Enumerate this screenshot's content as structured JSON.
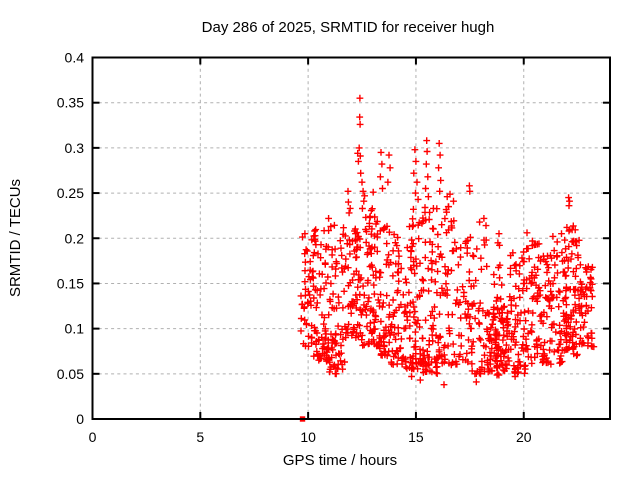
{
  "window": {
    "background": "#ffffff"
  },
  "chart_data": {
    "type": "scatter",
    "title": "Day 286 of 2025, SRMTID for receiver hugh",
    "xlabel": "GPS time / hours",
    "ylabel": "SRMTID / TECUs",
    "xlim": [
      0,
      24
    ],
    "ylim": [
      0,
      0.4
    ],
    "xticks": [
      0,
      5,
      10,
      15,
      20
    ],
    "xtick_labels": [
      "0",
      "5",
      "10",
      "15",
      "20"
    ],
    "yticks": [
      0,
      0.05,
      0.1,
      0.15,
      0.2,
      0.25,
      0.3,
      0.35,
      0.4
    ],
    "ytick_labels": [
      "0",
      "0.05",
      "0.1",
      "0.15",
      "0.2",
      "0.25",
      "0.3",
      "0.35",
      "0.4"
    ],
    "grid": "dashed gridlines at every tick, both axes",
    "legend": "none",
    "marker": "plus",
    "marker_size_px": 7,
    "colors": {
      "points": "#ff0000",
      "grid": "#b0b0b0",
      "axis": "#000000",
      "text": "#000000",
      "background": "#ffffff"
    },
    "x_data_range": [
      9.6,
      23.3
    ],
    "y_data_range": [
      0.0,
      0.355
    ],
    "n_points_estimate": 1250,
    "max_point": [
      12.4,
      0.355
    ],
    "zero_marker": {
      "x": 9.74,
      "y": 0.0,
      "marker": "filled-square"
    },
    "outlier_points": [
      [
        12.4,
        0.355
      ],
      [
        12.39,
        0.334
      ],
      [
        12.41,
        0.326
      ],
      [
        12.37,
        0.3
      ],
      [
        12.3,
        0.294
      ],
      [
        12.42,
        0.291
      ],
      [
        12.33,
        0.285
      ],
      [
        12.44,
        0.272
      ],
      [
        12.5,
        0.262
      ],
      [
        12.55,
        0.252
      ],
      [
        12.62,
        0.247
      ],
      [
        12.58,
        0.241
      ],
      [
        11.85,
        0.252
      ],
      [
        11.87,
        0.24
      ],
      [
        11.9,
        0.228
      ],
      [
        11.95,
        0.233
      ],
      [
        13.38,
        0.295
      ],
      [
        13.42,
        0.282
      ],
      [
        13.35,
        0.268
      ],
      [
        13.45,
        0.255
      ],
      [
        13.75,
        0.292
      ],
      [
        13.8,
        0.278
      ],
      [
        13.7,
        0.262
      ],
      [
        13.02,
        0.251
      ],
      [
        14.95,
        0.298
      ],
      [
        15.0,
        0.285
      ],
      [
        14.9,
        0.272
      ],
      [
        15.05,
        0.262
      ],
      [
        14.98,
        0.25
      ],
      [
        15.1,
        0.243
      ],
      [
        14.88,
        0.232
      ],
      [
        15.5,
        0.308
      ],
      [
        15.52,
        0.296
      ],
      [
        15.48,
        0.282
      ],
      [
        15.55,
        0.268
      ],
      [
        15.45,
        0.255
      ],
      [
        15.58,
        0.246
      ],
      [
        16.08,
        0.305
      ],
      [
        16.12,
        0.292
      ],
      [
        16.05,
        0.278
      ],
      [
        16.15,
        0.264
      ],
      [
        16.1,
        0.252
      ],
      [
        16.45,
        0.246
      ],
      [
        16.5,
        0.235
      ],
      [
        17.48,
        0.258
      ],
      [
        17.5,
        0.252
      ],
      [
        10.95,
        0.222
      ],
      [
        11.05,
        0.213
      ],
      [
        9.85,
        0.205
      ],
      [
        10.3,
        0.208
      ],
      [
        18.15,
        0.222
      ],
      [
        18.25,
        0.214
      ],
      [
        18.85,
        0.205
      ],
      [
        18.8,
        0.195
      ],
      [
        20.15,
        0.206
      ],
      [
        20.4,
        0.197
      ],
      [
        20.55,
        0.193
      ],
      [
        21.35,
        0.202
      ],
      [
        21.55,
        0.196
      ],
      [
        21.75,
        0.205
      ],
      [
        22.0,
        0.212
      ],
      [
        22.1,
        0.208
      ],
      [
        21.9,
        0.198
      ],
      [
        22.3,
        0.196
      ],
      [
        22.45,
        0.192
      ],
      [
        22.08,
        0.245
      ],
      [
        22.12,
        0.241
      ],
      [
        22.1,
        0.236
      ],
      [
        15.2,
        0.043
      ],
      [
        16.3,
        0.038
      ],
      [
        17.8,
        0.041
      ],
      [
        11.3,
        0.05
      ],
      [
        14.8,
        0.047
      ],
      [
        19.6,
        0.047
      ],
      [
        23.0,
        0.09
      ],
      [
        23.15,
        0.095
      ],
      [
        23.25,
        0.08
      ]
    ],
    "clusters": [
      {
        "x0": 9.65,
        "x1": 10.2,
        "ymin": 0.08,
        "ymax": 0.205,
        "n": 40,
        "pow": 1.6
      },
      {
        "x0": 10.2,
        "x1": 11.0,
        "ymin": 0.065,
        "ymax": 0.21,
        "n": 75,
        "pow": 1.6
      },
      {
        "x0": 10.75,
        "x1": 11.3,
        "ymin": 0.048,
        "ymax": 0.1,
        "n": 15,
        "pow": 1.2
      },
      {
        "x0": 11.0,
        "x1": 11.7,
        "ymin": 0.055,
        "ymax": 0.215,
        "n": 55,
        "pow": 1.6
      },
      {
        "x0": 11.7,
        "x1": 12.45,
        "ymin": 0.09,
        "ymax": 0.215,
        "n": 65,
        "pow": 1.4
      },
      {
        "x0": 12.45,
        "x1": 13.1,
        "ymin": 0.08,
        "ymax": 0.235,
        "n": 65,
        "pow": 1.5
      },
      {
        "x0": 13.1,
        "x1": 13.8,
        "ymin": 0.07,
        "ymax": 0.225,
        "n": 65,
        "pow": 1.5
      },
      {
        "x0": 13.8,
        "x1": 14.5,
        "ymin": 0.06,
        "ymax": 0.205,
        "n": 55,
        "pow": 1.4
      },
      {
        "x0": 14.5,
        "x1": 15.3,
        "ymin": 0.055,
        "ymax": 0.225,
        "n": 80,
        "pow": 1.5
      },
      {
        "x0": 15.3,
        "x1": 16.0,
        "ymin": 0.05,
        "ymax": 0.24,
        "n": 70,
        "pow": 1.6
      },
      {
        "x0": 16.0,
        "x1": 16.8,
        "ymin": 0.06,
        "ymax": 0.25,
        "n": 60,
        "pow": 1.7
      },
      {
        "x0": 16.8,
        "x1": 17.6,
        "ymin": 0.06,
        "ymax": 0.215,
        "n": 50,
        "pow": 1.5
      },
      {
        "x0": 17.6,
        "x1": 18.4,
        "ymin": 0.05,
        "ymax": 0.22,
        "n": 50,
        "pow": 1.6
      },
      {
        "x0": 18.4,
        "x1": 19.35,
        "ymin": 0.048,
        "ymax": 0.125,
        "n": 100,
        "pow": 1.2
      },
      {
        "x0": 18.6,
        "x1": 19.0,
        "ymin": 0.125,
        "ymax": 0.205,
        "n": 10,
        "pow": 1.0
      },
      {
        "x0": 19.35,
        "x1": 20.1,
        "ymin": 0.05,
        "ymax": 0.185,
        "n": 65,
        "pow": 1.4
      },
      {
        "x0": 20.1,
        "x1": 21.0,
        "ymin": 0.06,
        "ymax": 0.2,
        "n": 72,
        "pow": 1.4
      },
      {
        "x0": 21.0,
        "x1": 21.9,
        "ymin": 0.06,
        "ymax": 0.19,
        "n": 72,
        "pow": 1.3
      },
      {
        "x0": 21.9,
        "x1": 22.6,
        "ymin": 0.07,
        "ymax": 0.215,
        "n": 80,
        "pow": 1.3
      },
      {
        "x0": 22.6,
        "x1": 23.2,
        "ymin": 0.08,
        "ymax": 0.175,
        "n": 50,
        "pow": 1.2
      }
    ],
    "seed": 286
  }
}
